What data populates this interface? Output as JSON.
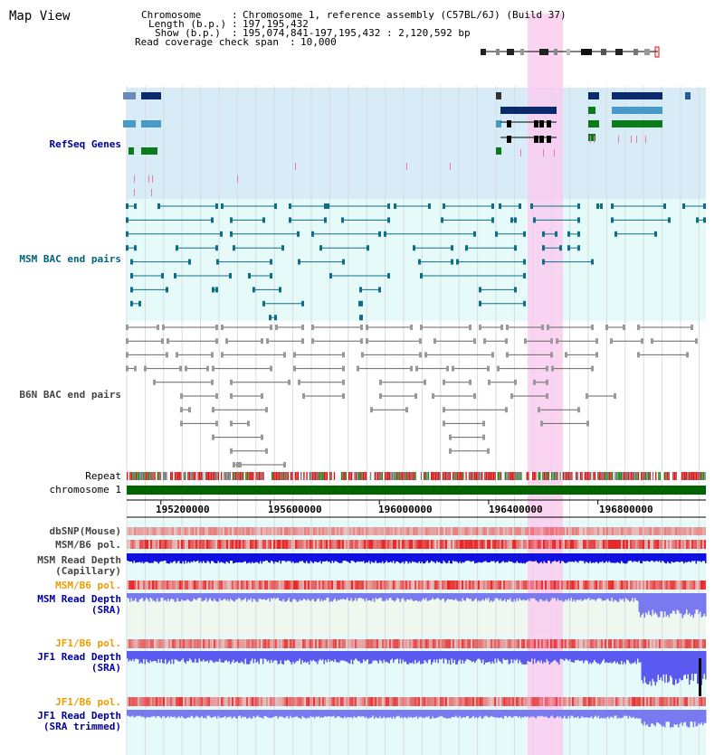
{
  "page": {
    "title": "Map View"
  },
  "header": {
    "chromosome_label": "Chromosome",
    "chromosome_value": "Chromosome 1, reference assembly (C57BL/6J) (Build 37)",
    "length_label": "Length (b.p.)",
    "length_value": "197,195,432",
    "show_label": "Show (b.p.)",
    "show_value": "195,074,841-197,195,432 : 2,120,592 bp",
    "coverage_label": "Read coverage check span",
    "coverage_value": "10,000"
  },
  "tracks": {
    "refseq": "RefSeq Genes",
    "msm_bac": "MSM BAC end pairs",
    "b6n_bac": "B6N BAC end pairs",
    "repeat": "Repeat",
    "chromosome": "chromosome 1",
    "dbsnp": "dbSNP(Mouse)",
    "msm_b6_pol": "MSM/B6 pol.",
    "msm_read_depth_cap_1": "MSM Read Depth",
    "msm_read_depth_cap_2": "(Capillary)",
    "msm_b6_pol_2": "MSM/B6 pol.",
    "msm_read_depth_sra_1": "MSM Read Depth",
    "msm_read_depth_sra_2": "(SRA)",
    "jf1_b6_pol": "JF1/B6 pol.",
    "jf1_read_depth_sra_1": "JF1 Read Depth",
    "jf1_read_depth_sra_2": "(SRA)",
    "jf1_b6_pol_2": "JF1/B6 pol.",
    "jf1_read_depth_trim_1": "JF1 Read Depth",
    "jf1_read_depth_trim_2": "(SRA trimmed)"
  },
  "axis": {
    "ticks": [
      "195200000",
      "195600000",
      "196000000",
      "196400000",
      "196800000"
    ]
  },
  "colors": {
    "refseq_bg": "#d8ecf8",
    "track_bg": "#e6fafa",
    "highlight": "#f9cdee",
    "chromosome_bar": "#006400",
    "snp_red": "#e02020",
    "depth_blue": "#1010e0",
    "depth_light": "#7a7af0"
  }
}
